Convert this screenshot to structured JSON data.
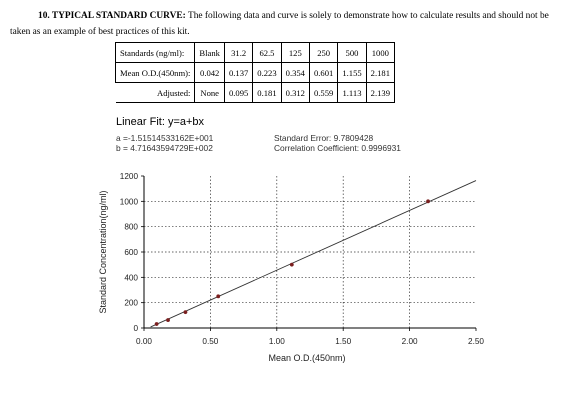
{
  "heading": {
    "number_title": "10. TYPICAL STANDARD CURVE:",
    "text": "The following data and curve is solely to demonstrate how to calculate results and should not be taken as an example of best practices of this kit."
  },
  "table": {
    "rows": [
      {
        "label": "Standards (ng/ml):",
        "cells": [
          "Blank",
          "31.2",
          "62.5",
          "125",
          "250",
          "500",
          "1000"
        ]
      },
      {
        "label": "Mean O.D.(450nm):",
        "cells": [
          "0.042",
          "0.137",
          "0.223",
          "0.354",
          "0.601",
          "1.155",
          "2.181"
        ]
      },
      {
        "label": "Adjusted:",
        "cells": [
          "None",
          "0.095",
          "0.181",
          "0.312",
          "0.559",
          "1.113",
          "2.139"
        ]
      }
    ]
  },
  "fit": {
    "title": "Linear Fit: y=a+bx",
    "a_line": "a =-1.51514533162E+001",
    "b_line": "b = 4.71643594729E+002",
    "se_line": "Standard Error: 9.7809428",
    "cc_line": "Correlation Coefficient: 0.9996931"
  },
  "chart_data": {
    "type": "scatter",
    "xlabel": "Mean O.D.(450nm)",
    "ylabel": "Standard Concentration(ng/ml)",
    "x_ticks": [
      "0.00",
      "0.50",
      "1.00",
      "1.50",
      "2.00",
      "2.50"
    ],
    "y_ticks": [
      "0",
      "200",
      "400",
      "600",
      "800",
      "1000",
      "1200"
    ],
    "xlim": [
      0,
      2.5
    ],
    "ylim": [
      0,
      1200
    ],
    "grid": true,
    "points": [
      {
        "x": 0.095,
        "y": 31.2
      },
      {
        "x": 0.181,
        "y": 62.5
      },
      {
        "x": 0.312,
        "y": 125
      },
      {
        "x": 0.559,
        "y": 250
      },
      {
        "x": 1.113,
        "y": 500
      },
      {
        "x": 2.139,
        "y": 1000
      }
    ],
    "fit_line": {
      "a": -15.1514533162,
      "b": 471.643594729,
      "x_range": [
        0.05,
        2.5
      ]
    }
  }
}
